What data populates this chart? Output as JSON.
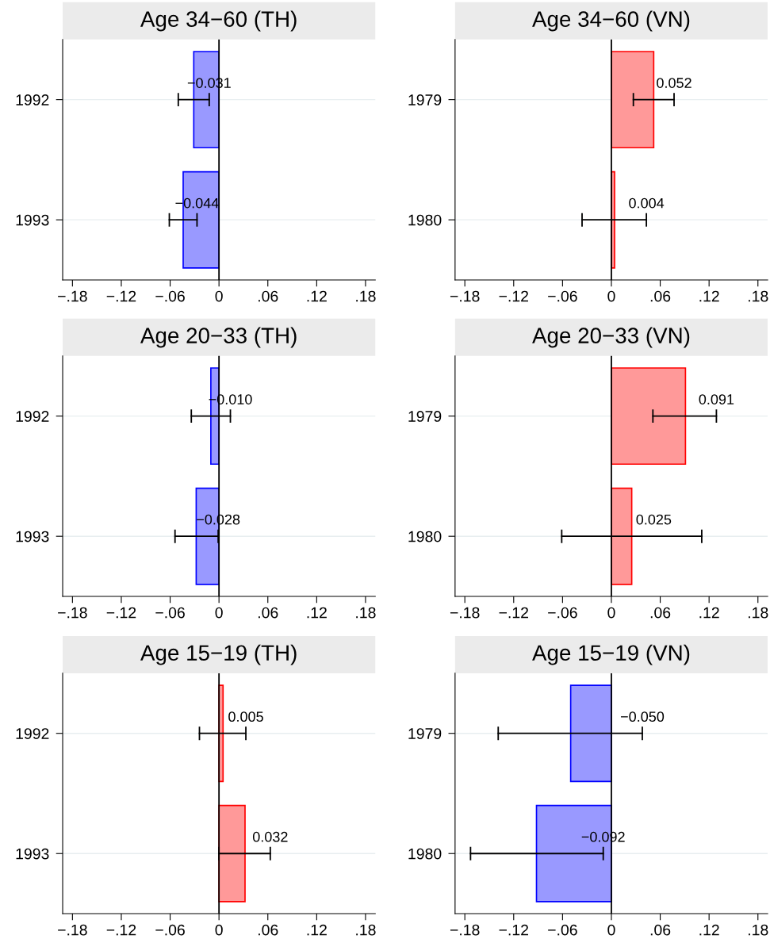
{
  "chart_data": [
    {
      "type": "bar",
      "orientation": "horizontal",
      "title": "Age 34−60 (TH)",
      "categories": [
        "1992",
        "1993"
      ],
      "values": [
        -0.031,
        -0.044
      ],
      "errors": [
        [
          -0.05,
          -0.012
        ],
        [
          -0.061,
          -0.027
        ]
      ],
      "value_labels": [
        "−0.031",
        "−0.044"
      ],
      "colors": [
        "#9999ff",
        "#9999ff"
      ],
      "xlim": [
        -0.192,
        0.192
      ],
      "xticks": [
        {
          "value": -0.18,
          "label": "−.18"
        },
        {
          "value": -0.12,
          "label": "−.12"
        },
        {
          "value": -0.06,
          "label": "−.06"
        },
        0,
        {
          "value": 0.06,
          "label": ".06"
        },
        {
          "value": 0.12,
          "label": ".12"
        },
        {
          "value": 0.18,
          "label": ".18"
        }
      ],
      "grid": "y",
      "ref_lines": [
        {
          "axis": "x",
          "value": 0,
          "color": "#000000"
        }
      ]
    },
    {
      "type": "bar",
      "orientation": "horizontal",
      "title": "Age 34−60 (VN)",
      "categories": [
        "1979",
        "1980"
      ],
      "values": [
        0.052,
        0.004
      ],
      "errors": [
        [
          0.027,
          0.077
        ],
        [
          -0.036,
          0.043
        ]
      ],
      "value_labels": [
        "0.052",
        "0.004"
      ],
      "colors": [
        "#ff9999",
        "#ff9999"
      ],
      "xlim": [
        -0.192,
        0.192
      ],
      "xticks": [
        {
          "value": -0.18,
          "label": "−.18"
        },
        {
          "value": -0.12,
          "label": "−.12"
        },
        {
          "value": -0.06,
          "label": "−.06"
        },
        0,
        {
          "value": 0.06,
          "label": ".06"
        },
        {
          "value": 0.12,
          "label": ".12"
        },
        {
          "value": 0.18,
          "label": ".18"
        }
      ],
      "grid": "y",
      "ref_lines": [
        {
          "axis": "x",
          "value": 0,
          "color": "#000000"
        }
      ]
    },
    {
      "type": "bar",
      "orientation": "horizontal",
      "title": "Age 20−33 (TH)",
      "categories": [
        "1992",
        "1993"
      ],
      "values": [
        -0.01,
        -0.028
      ],
      "errors": [
        [
          -0.034,
          0.014
        ],
        [
          -0.054,
          -0.001
        ]
      ],
      "value_labels": [
        "−0.010",
        "−0.028"
      ],
      "colors": [
        "#9999ff",
        "#9999ff"
      ],
      "xlim": [
        -0.192,
        0.192
      ],
      "xticks": [
        {
          "value": -0.18,
          "label": "−.18"
        },
        {
          "value": -0.12,
          "label": "−.12"
        },
        {
          "value": -0.06,
          "label": "−.06"
        },
        0,
        {
          "value": 0.06,
          "label": ".06"
        },
        {
          "value": 0.12,
          "label": ".12"
        },
        {
          "value": 0.18,
          "label": ".18"
        }
      ],
      "grid": "y",
      "ref_lines": [
        {
          "axis": "x",
          "value": 0,
          "color": "#000000"
        }
      ]
    },
    {
      "type": "bar",
      "orientation": "horizontal",
      "title": "Age 20−33 (VN)",
      "categories": [
        "1979",
        "1980"
      ],
      "values": [
        0.091,
        0.025
      ],
      "errors": [
        [
          0.051,
          0.129
        ],
        [
          -0.061,
          0.111
        ]
      ],
      "value_labels": [
        "0.091",
        "0.025"
      ],
      "colors": [
        "#ff9999",
        "#ff9999"
      ],
      "xlim": [
        -0.192,
        0.192
      ],
      "xticks": [
        {
          "value": -0.18,
          "label": "−.18"
        },
        {
          "value": -0.12,
          "label": "−.12"
        },
        {
          "value": -0.06,
          "label": "−.06"
        },
        0,
        {
          "value": 0.06,
          "label": ".06"
        },
        {
          "value": 0.12,
          "label": ".12"
        },
        {
          "value": 0.18,
          "label": ".18"
        }
      ],
      "grid": "y",
      "ref_lines": [
        {
          "axis": "x",
          "value": 0,
          "color": "#000000"
        }
      ]
    },
    {
      "type": "bar",
      "orientation": "horizontal",
      "title": "Age 15−19 (TH)",
      "categories": [
        "1992",
        "1993"
      ],
      "values": [
        0.005,
        0.032
      ],
      "errors": [
        [
          -0.024,
          0.033
        ],
        [
          0.0,
          0.063
        ]
      ],
      "value_labels": [
        "0.005",
        "0.032"
      ],
      "colors": [
        "#ff9999",
        "#ff9999"
      ],
      "xlim": [
        -0.192,
        0.192
      ],
      "xticks": [
        {
          "value": -0.18,
          "label": "−.18"
        },
        {
          "value": -0.12,
          "label": "−.12"
        },
        {
          "value": -0.06,
          "label": "−.06"
        },
        0,
        {
          "value": 0.06,
          "label": ".06"
        },
        {
          "value": 0.12,
          "label": ".12"
        },
        {
          "value": 0.18,
          "label": ".18"
        }
      ],
      "grid": "y",
      "ref_lines": [
        {
          "axis": "x",
          "value": 0,
          "color": "#000000"
        }
      ]
    },
    {
      "type": "bar",
      "orientation": "horizontal",
      "title": "Age 15−19 (VN)",
      "categories": [
        "1979",
        "1980"
      ],
      "values": [
        -0.05,
        -0.092
      ],
      "errors": [
        [
          -0.139,
          0.038
        ],
        [
          -0.173,
          -0.01
        ]
      ],
      "value_labels": [
        "−0.050",
        "−0.092"
      ],
      "colors": [
        "#9999ff",
        "#9999ff"
      ],
      "xlim": [
        -0.192,
        0.192
      ],
      "xticks": [
        {
          "value": -0.18,
          "label": "−.18"
        },
        {
          "value": -0.12,
          "label": "−.12"
        },
        {
          "value": -0.06,
          "label": "−.06"
        },
        0,
        {
          "value": 0.06,
          "label": ".06"
        },
        {
          "value": 0.12,
          "label": ".12"
        },
        {
          "value": 0.18,
          "label": ".18"
        }
      ],
      "grid": "y",
      "ref_lines": [
        {
          "axis": "x",
          "value": 0,
          "color": "#000000"
        }
      ]
    }
  ]
}
